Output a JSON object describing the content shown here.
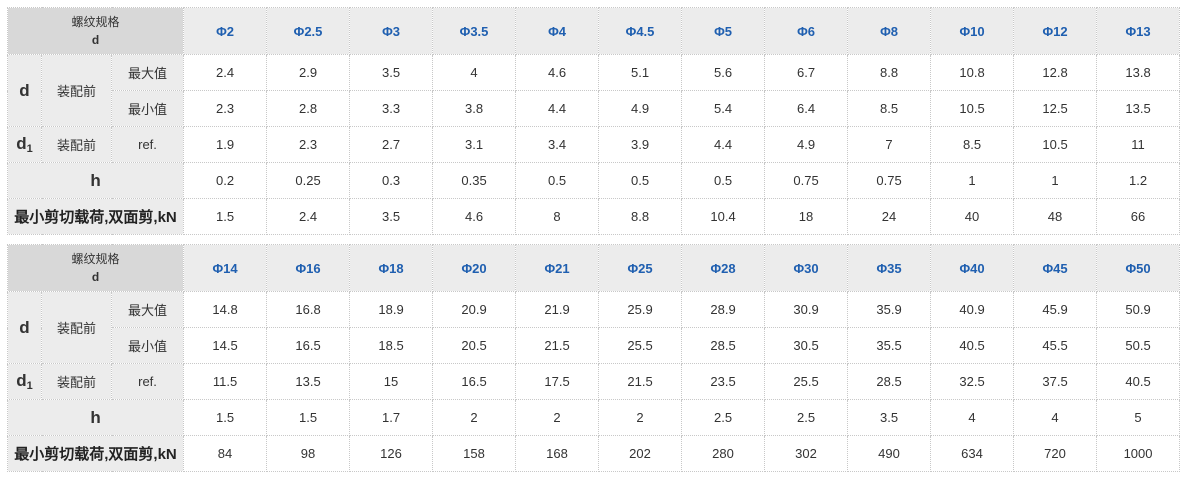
{
  "labels": {
    "corner_line1": "螺纹规格",
    "corner_line2": "d",
    "row_d": "d",
    "row_d1_main": "d",
    "row_d1_sub": "1",
    "before_assembly": "装配前",
    "max": "最大值",
    "min": "最小值",
    "ref": "ref.",
    "row_h": "h",
    "row_shear": "最小剪切载荷,双面剪,kN"
  },
  "tables": [
    {
      "specs": [
        "Φ2",
        "Φ2.5",
        "Φ3",
        "Φ3.5",
        "Φ4",
        "Φ4.5",
        "Φ5",
        "Φ6",
        "Φ8",
        "Φ10",
        "Φ12",
        "Φ13"
      ],
      "d_max": [
        "2.4",
        "2.9",
        "3.5",
        "4",
        "4.6",
        "5.1",
        "5.6",
        "6.7",
        "8.8",
        "10.8",
        "12.8",
        "13.8"
      ],
      "d_min": [
        "2.3",
        "2.8",
        "3.3",
        "3.8",
        "4.4",
        "4.9",
        "5.4",
        "6.4",
        "8.5",
        "10.5",
        "12.5",
        "13.5"
      ],
      "d1_ref": [
        "1.9",
        "2.3",
        "2.7",
        "3.1",
        "3.4",
        "3.9",
        "4.4",
        "4.9",
        "7",
        "8.5",
        "10.5",
        "11"
      ],
      "h": [
        "0.2",
        "0.25",
        "0.3",
        "0.35",
        "0.5",
        "0.5",
        "0.5",
        "0.75",
        "0.75",
        "1",
        "1",
        "1.2"
      ],
      "shear": [
        "1.5",
        "2.4",
        "3.5",
        "4.6",
        "8",
        "8.8",
        "10.4",
        "18",
        "24",
        "40",
        "48",
        "66"
      ]
    },
    {
      "specs": [
        "Φ14",
        "Φ16",
        "Φ18",
        "Φ20",
        "Φ21",
        "Φ25",
        "Φ28",
        "Φ30",
        "Φ35",
        "Φ40",
        "Φ45",
        "Φ50"
      ],
      "d_max": [
        "14.8",
        "16.8",
        "18.9",
        "20.9",
        "21.9",
        "25.9",
        "28.9",
        "30.9",
        "35.9",
        "40.9",
        "45.9",
        "50.9"
      ],
      "d_min": [
        "14.5",
        "16.5",
        "18.5",
        "20.5",
        "21.5",
        "25.5",
        "28.5",
        "30.5",
        "35.5",
        "40.5",
        "45.5",
        "50.5"
      ],
      "d1_ref": [
        "11.5",
        "13.5",
        "15",
        "16.5",
        "17.5",
        "21.5",
        "23.5",
        "25.5",
        "28.5",
        "32.5",
        "37.5",
        "40.5"
      ],
      "h": [
        "1.5",
        "1.5",
        "1.7",
        "2",
        "2",
        "2",
        "2.5",
        "2.5",
        "3.5",
        "4",
        "4",
        "5"
      ],
      "shear": [
        "84",
        "98",
        "126",
        "158",
        "168",
        "202",
        "280",
        "302",
        "490",
        "634",
        "720",
        "1000"
      ]
    }
  ]
}
